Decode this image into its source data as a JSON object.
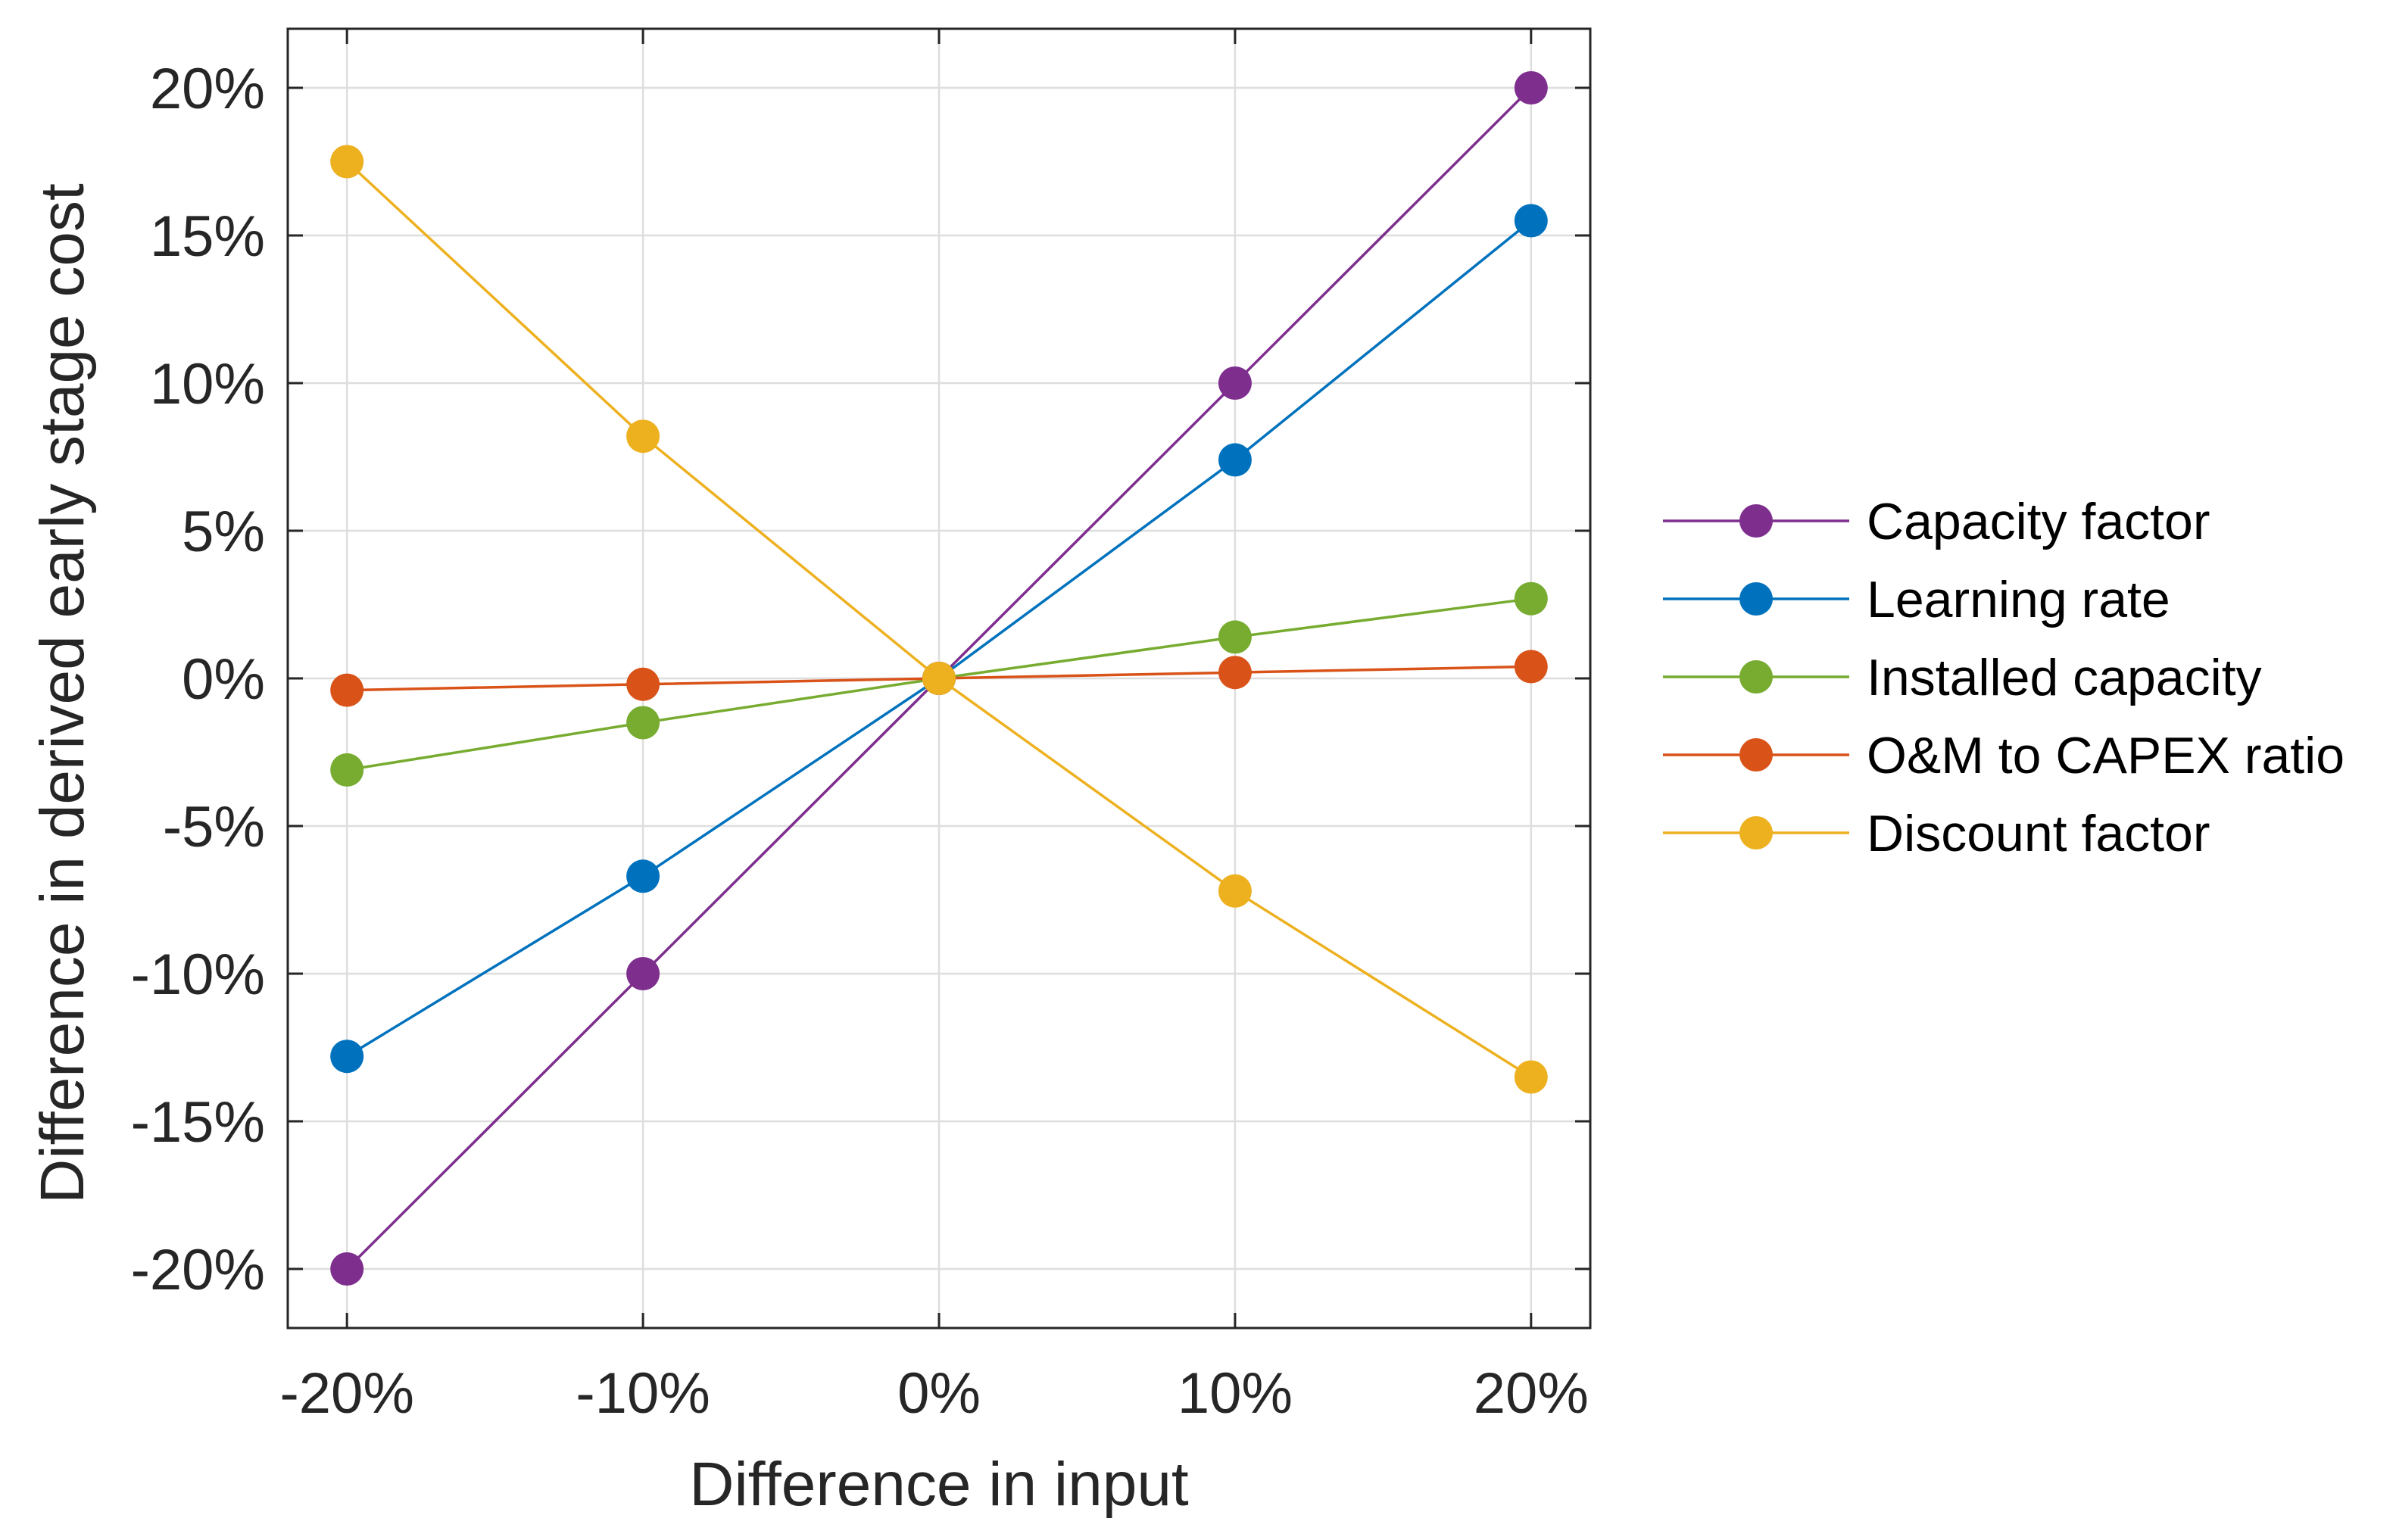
{
  "chart_data": {
    "type": "line",
    "title": "",
    "xlabel": "Difference in input",
    "ylabel": "Difference in derived early stage cost",
    "x": [
      -20,
      -10,
      0,
      10,
      20
    ],
    "xlim": [
      -22,
      22
    ],
    "ylim": [
      -22,
      22
    ],
    "xticks": [
      -20,
      -10,
      0,
      10,
      20
    ],
    "yticks": [
      -20,
      -15,
      -10,
      -5,
      0,
      5,
      10,
      15,
      20
    ],
    "xtick_labels": [
      "-20%",
      "-10%",
      "0%",
      "10%",
      "20%"
    ],
    "ytick_labels": [
      "-20%",
      "-15%",
      "-10%",
      "-5%",
      "0%",
      "5%",
      "10%",
      "15%",
      "20%"
    ],
    "grid": true,
    "legend_position": "outside-right",
    "series": [
      {
        "name": "Capacity factor",
        "color": "#7E2F8E",
        "values": [
          -20,
          -10,
          0,
          10,
          20
        ]
      },
      {
        "name": "Learning rate",
        "color": "#0072BD",
        "values": [
          -12.8,
          -6.7,
          0,
          7.4,
          15.5
        ]
      },
      {
        "name": "Installed capacity",
        "color": "#77AC30",
        "values": [
          -3.1,
          -1.5,
          0,
          1.4,
          2.7
        ]
      },
      {
        "name": "O&M to CAPEX ratio",
        "color": "#D95319",
        "values": [
          -0.4,
          -0.2,
          0,
          0.2,
          0.4
        ]
      },
      {
        "name": "Discount factor",
        "color": "#EDB120",
        "values": [
          17.5,
          8.2,
          0,
          -7.2,
          -13.5
        ]
      }
    ]
  }
}
